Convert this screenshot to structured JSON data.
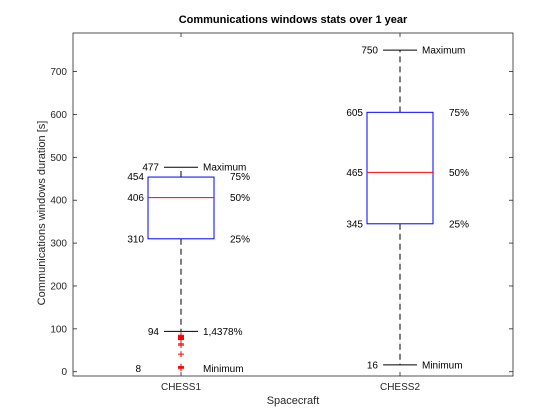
{
  "chart_data": {
    "type": "box",
    "title": "Communications windows stats over 1 year",
    "xlabel": "Spacecraft",
    "ylabel": "Communications windows duration [s]",
    "ylim": [
      -10,
      790
    ],
    "yticks": [
      0,
      100,
      200,
      300,
      400,
      500,
      600,
      700
    ],
    "categories": [
      "CHESS1",
      "CHESS2"
    ],
    "grid": false,
    "colors": {
      "box": "#0000ff",
      "median": "#ff0000",
      "whisker": "#000000",
      "outlier": "#ff0000",
      "q_text": "#0000ff",
      "median_text": "#ff0000"
    },
    "boxes": [
      {
        "name": "CHESS1",
        "q1": 310,
        "median": 406,
        "q3": 454,
        "whisker_low": 94,
        "whisker_high": 477,
        "outliers": [
          85,
          83,
          82,
          81,
          80,
          79,
          78,
          77,
          76,
          75,
          65,
          62,
          41,
          12,
          10,
          8
        ],
        "annotations": {
          "max_value": "477",
          "max_label": "Maximum",
          "q3_value": "454",
          "q3_label": "75%",
          "median_value": "406",
          "median_label": "50%",
          "q1_value": "310",
          "q1_label": "25%",
          "lower_value": "94",
          "lower_label": "1,4378%",
          "min_value": "8",
          "min_label": "Minimum"
        }
      },
      {
        "name": "CHESS2",
        "q1": 345,
        "median": 465,
        "q3": 605,
        "whisker_low": 16,
        "whisker_high": 750,
        "outliers": [],
        "annotations": {
          "max_value": "750",
          "max_label": "Maximum",
          "q3_value": "605",
          "q3_label": "75%",
          "median_value": "465",
          "median_label": "50%",
          "q1_value": "345",
          "q1_label": "25%",
          "min_value": "16",
          "min_label": "Minimum"
        }
      }
    ]
  }
}
